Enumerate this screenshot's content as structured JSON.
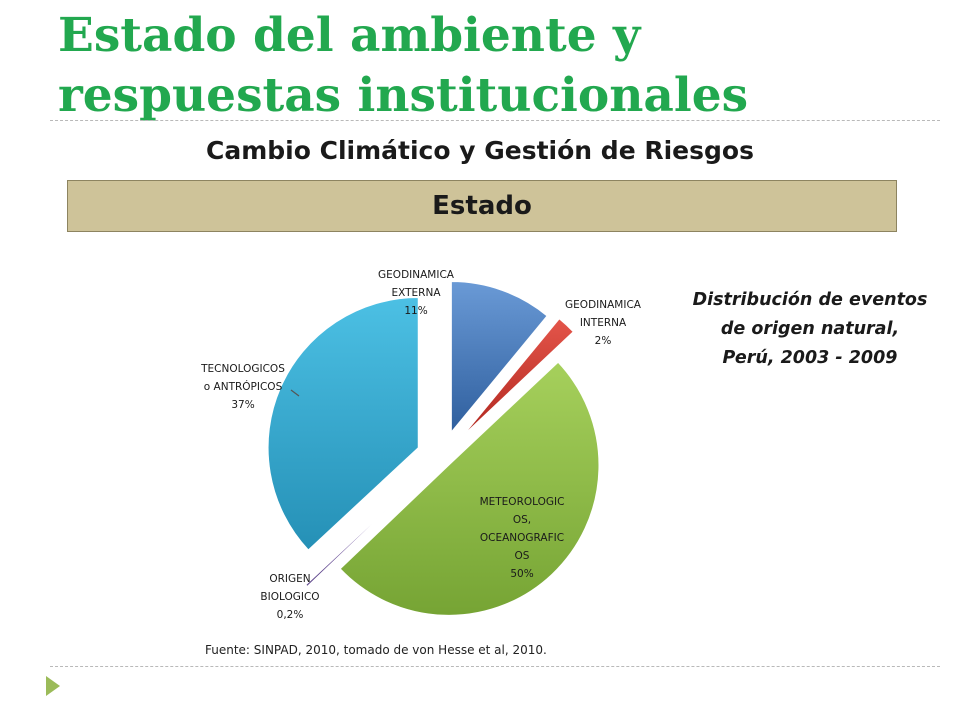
{
  "slide": {
    "title": "Estado del ambiente y respuestas institucionales",
    "subtitle": "Cambio Climático y Gestión de Riesgos",
    "banner": "Estado",
    "source": "Fuente: SINPAD, 2010, tomado de von Hesse et al, 2010."
  },
  "chart_data": {
    "type": "pie",
    "title": "Distribución de eventos de origen natural, Perú, 2003 - 2009",
    "slices": [
      {
        "label_lines": [
          "GEODINAMICA",
          "EXTERNA"
        ],
        "value": 11,
        "value_label": "11%",
        "color": "#4a7ebb"
      },
      {
        "label_lines": [
          "GEODINAMICA",
          "INTERNA"
        ],
        "value": 2,
        "value_label": "2%",
        "color": "#d0392f"
      },
      {
        "label_lines": [
          "METEOROLOGIC",
          "OS,",
          "OCEANOGRAFIC",
          "OS"
        ],
        "value": 50,
        "value_label": "50%",
        "color": "#90bd46"
      },
      {
        "label_lines": [
          "ORIGEN",
          "BIOLOGICO"
        ],
        "value": 0.2,
        "value_label": "0,2%",
        "color": "#7b5fa8"
      },
      {
        "label_lines": [
          "TECNOLOGICOS",
          "o ANTRÓPICOS"
        ],
        "value": 37,
        "value_label": "37%",
        "color": "#35a9d0"
      }
    ],
    "exploded": true,
    "legend": "none"
  }
}
